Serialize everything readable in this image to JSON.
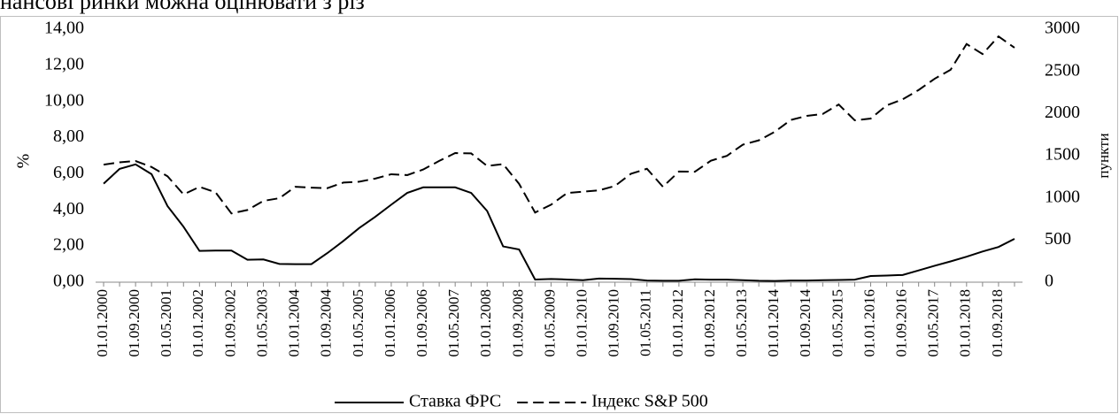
{
  "caption": "нансові ринки можна оцінювати з різ",
  "chart_data": {
    "type": "line",
    "ylabel": "%",
    "y2label": "пункти",
    "categories": [
      "01.01.2000",
      null,
      "01.09.2000",
      null,
      "01.05.2001",
      null,
      "01.01.2002",
      null,
      "01.09.2002",
      null,
      "01.05.2003",
      null,
      "01.01.2004",
      null,
      "01.09.2004",
      null,
      "01.05.2005",
      null,
      "01.01.2006",
      null,
      "01.09.2006",
      null,
      "01.05.2007",
      null,
      "01.01.2008",
      null,
      "01.09.2008",
      null,
      "01.05.2009",
      null,
      "01.01.2010",
      null,
      "01.09.2010",
      null,
      "01.05.2011",
      null,
      "01.01.2012",
      null,
      "01.09.2012",
      null,
      "01.05.2013",
      null,
      "01.01.2014",
      null,
      "01.09.2014",
      null,
      "01.05.2015",
      null,
      "01.01.2016",
      null,
      "01.09.2016",
      null,
      "01.05.2017",
      null,
      "01.01.2018",
      null,
      "01.09.2018",
      null
    ],
    "series": [
      {
        "name": "Ставка ФРС",
        "color": "#000000",
        "dash": "solid",
        "values": [
          5.45,
          6.27,
          6.52,
          5.98,
          4.21,
          3.07,
          1.73,
          1.75,
          1.75,
          1.24,
          1.26,
          1.01,
          1.0,
          1.0,
          1.61,
          2.28,
          3.0,
          3.62,
          4.29,
          4.94,
          5.25,
          5.25,
          5.25,
          4.94,
          3.94,
          1.98,
          1.81,
          0.15,
          0.18,
          0.15,
          0.11,
          0.2,
          0.19,
          0.17,
          0.09,
          0.08,
          0.08,
          0.16,
          0.14,
          0.14,
          0.11,
          0.08,
          0.07,
          0.09,
          0.09,
          0.11,
          0.12,
          0.14,
          0.34,
          0.37,
          0.4,
          0.65,
          0.91,
          1.15,
          1.41,
          1.7,
          1.95,
          2.4
        ]
      },
      {
        "name": "Індекс S&P 500",
        "color": "#000000",
        "dash": "dashed",
        "axis": "y2",
        "values": [
          1394,
          1421,
          1437,
          1366,
          1256,
          1041,
          1130,
          1067,
          815,
          856,
          964,
          996,
          1131,
          1121,
          1115,
          1181,
          1192,
          1229,
          1280,
          1270,
          1336,
          1438,
          1531,
          1527,
          1378,
          1400,
          1166,
          826,
          919,
          1057,
          1074,
          1089,
          1141,
          1286,
          1345,
          1131,
          1312,
          1310,
          1441,
          1498,
          1631,
          1682,
          1783,
          1924,
          1972,
          1995,
          2107,
          1920,
          1940,
          2097,
          2168,
          2279,
          2412,
          2519,
          2824,
          2705,
          2914,
          2780
        ]
      }
    ],
    "ylim": [
      0,
      14
    ],
    "yticks": [
      {
        "value": 0,
        "label": "0,00"
      },
      {
        "value": 2,
        "label": "2,00"
      },
      {
        "value": 4,
        "label": "4,00"
      },
      {
        "value": 6,
        "label": "6,00"
      },
      {
        "value": 8,
        "label": "8,00"
      },
      {
        "value": 10,
        "label": "10,00"
      },
      {
        "value": 12,
        "label": "12,00"
      },
      {
        "value": 14,
        "label": "14,00"
      }
    ],
    "y2lim": [
      0,
      3000
    ],
    "y2ticks": [
      0,
      500,
      1000,
      1500,
      2000,
      2500,
      3000
    ],
    "legend": "bottom"
  }
}
